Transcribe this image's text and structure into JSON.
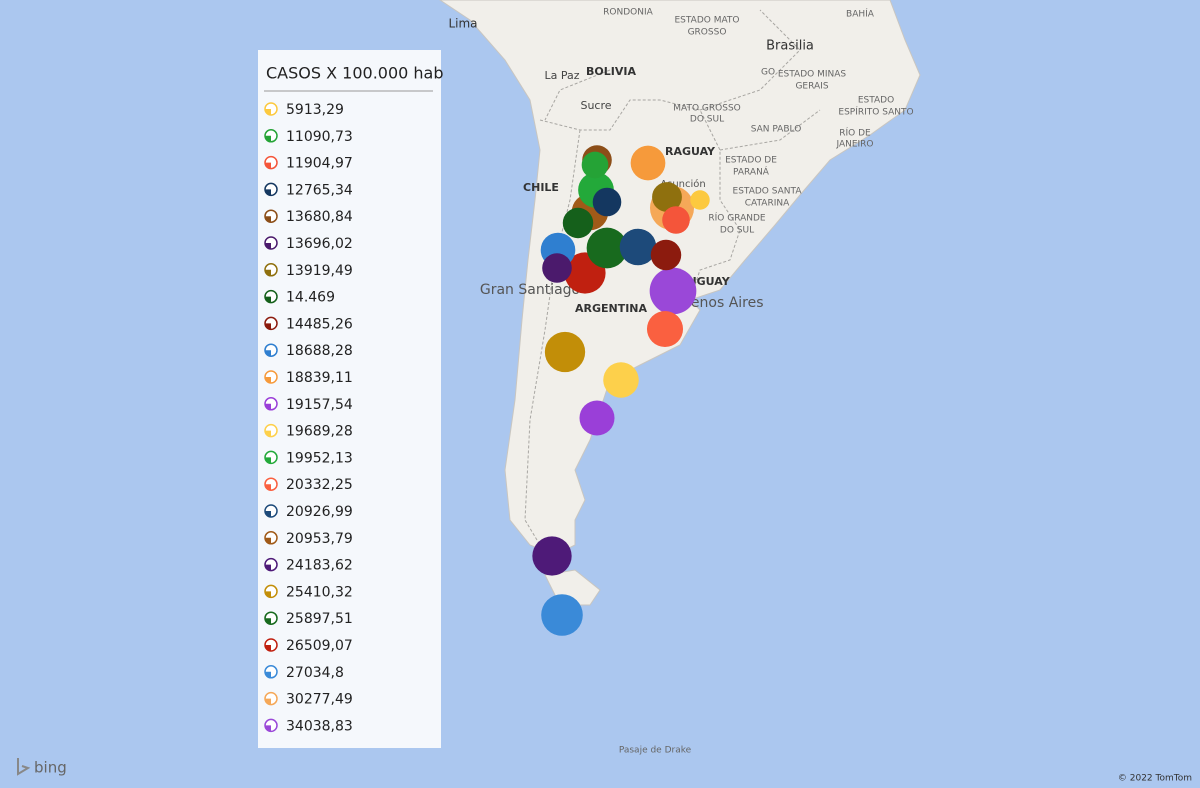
{
  "legend": {
    "title": "CASOS X 100.000 hab",
    "items": [
      {
        "label": "5913,29",
        "value": 5913.29,
        "color": "#fcc93f"
      },
      {
        "label": "11090,73",
        "value": 11090.73,
        "color": "#25a336"
      },
      {
        "label": "11904,97",
        "value": 11904.97,
        "color": "#f4553a"
      },
      {
        "label": "12765,34",
        "value": 12765.34,
        "color": "#143760"
      },
      {
        "label": "13680,84",
        "value": 13680.84,
        "color": "#8c4e18"
      },
      {
        "label": "13696,02",
        "value": 13696.02,
        "color": "#4b1a6c"
      },
      {
        "label": "13919,49",
        "value": 13919.49,
        "color": "#8f700e"
      },
      {
        "label": "14.469",
        "value": 14469,
        "color": "#15601b"
      },
      {
        "label": "14485,26",
        "value": 14485.26,
        "color": "#8c1b0e"
      },
      {
        "label": "18688,28",
        "value": 18688.28,
        "color": "#2f7fd0"
      },
      {
        "label": "18839,11",
        "value": 18839.11,
        "color": "#f69a3b"
      },
      {
        "label": "19157,54",
        "value": 19157.54,
        "color": "#9a3fd8"
      },
      {
        "label": "19689,28",
        "value": 19689.28,
        "color": "#fdd04b"
      },
      {
        "label": "19952,13",
        "value": 19952.13,
        "color": "#23a93a"
      },
      {
        "label": "20332,25",
        "value": 20332.25,
        "color": "#fa6040"
      },
      {
        "label": "20926,99",
        "value": 20926.99,
        "color": "#1d4a7a"
      },
      {
        "label": "20953,79",
        "value": 20953.79,
        "color": "#a05a18"
      },
      {
        "label": "24183,62",
        "value": 24183.62,
        "color": "#4e1a78"
      },
      {
        "label": "25410,32",
        "value": 25410.32,
        "color": "#c28e08"
      },
      {
        "label": "25897,51",
        "value": 25897.51,
        "color": "#186a1e"
      },
      {
        "label": "26509,07",
        "value": 26509.07,
        "color": "#c02010"
      },
      {
        "label": "27034,8",
        "value": 27034.8,
        "color": "#3a8ad8"
      },
      {
        "label": "30277,49",
        "value": 30277.49,
        "color": "#f5a858"
      },
      {
        "label": "34038,83",
        "value": 34038.83,
        "color": "#9a48d8"
      }
    ]
  },
  "map_labels": [
    "Lima",
    "RONDONIA",
    "ESTADO MATO",
    "GROSSO",
    "BAHÍA",
    "Brasilia",
    "GO",
    "ESTADO MINAS",
    "GERAIS",
    "ESTADO",
    "ESPÍRITO SANTO",
    "La Paz",
    "BOLIVIA",
    "Sucre",
    "MATO GROSSO",
    "DO SUL",
    "SAN PABLO",
    "RÍO DE",
    "JANEIRO",
    "RAGUAY",
    "ESTADO DE",
    "PARANÁ",
    "Asunción",
    "ESTADO SANTA",
    "CATARINA",
    "RÍO GRANDE",
    "DO SUL",
    "CHILE",
    "Gran Santiago",
    "ARGENTINA",
    "Buenos Aires",
    "URUGUAY",
    "Pasaje de Drake"
  ],
  "attribution": {
    "logo": "bing",
    "copyright": "© 2022 TomTom"
  }
}
